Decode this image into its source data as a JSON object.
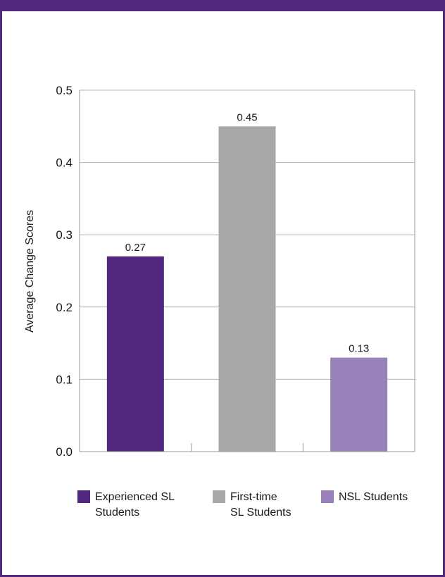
{
  "chart_data": {
    "type": "bar",
    "title": "",
    "xlabel": "",
    "ylabel": "Average Change Scores",
    "ylim": [
      0,
      0.5
    ],
    "yticks": [
      "0.0",
      "0.1",
      "0.2",
      "0.3",
      "0.4",
      "0.5"
    ],
    "grid": true,
    "legend_position": "bottom",
    "categories": [
      "Experienced SL Students",
      "First-time SL Students",
      "NSL Students"
    ],
    "values": [
      0.27,
      0.45,
      0.13
    ],
    "value_labels": [
      "0.27",
      "0.45",
      "0.13"
    ],
    "colors": [
      "#51277f",
      "#a7a8aa",
      "#9781b8"
    ],
    "legend": [
      {
        "lines": [
          "Experienced SL",
          "Students"
        ],
        "color": "#51277f"
      },
      {
        "lines": [
          "First-time",
          "SL Students"
        ],
        "color": "#a7a8aa"
      },
      {
        "lines": [
          "NSL Students"
        ],
        "color": "#9781b8"
      }
    ]
  },
  "colors": {
    "frame": "#51277f",
    "grid": "#b3b3b3",
    "axis": "#9a9a9a"
  }
}
